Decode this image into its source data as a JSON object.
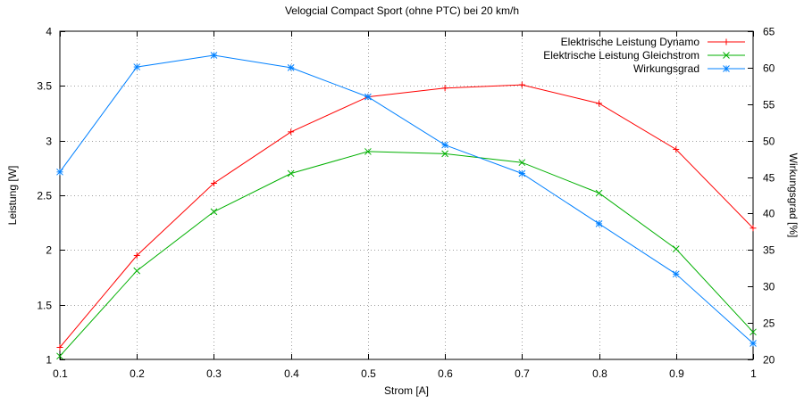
{
  "chart_data": {
    "type": "line",
    "title": "Velogcial Compact Sport (ohne PTC) bei 20 km/h",
    "xlabel": "Strom [A]",
    "ylabel": "Leistung [W]",
    "y2label": "Wirkungsgrad [%]",
    "xlim": [
      0.1,
      1
    ],
    "ylim": [
      1,
      4
    ],
    "y2lim": [
      20,
      65
    ],
    "grid": true,
    "legend_position": "top-right",
    "x": [
      0.1,
      0.2,
      0.3,
      0.4,
      0.5,
      0.6,
      0.7,
      0.8,
      0.9,
      1.0
    ],
    "x_ticks": [
      "0.1",
      "0.2",
      "0.3",
      "0.4",
      "0.5",
      "0.6",
      "0.7",
      "0.8",
      "0.9",
      "1"
    ],
    "y_ticks": [
      "1",
      "1.5",
      "2",
      "2.5",
      "3",
      "3.5",
      "4"
    ],
    "y_tick_values": [
      1,
      1.5,
      2,
      2.5,
      3,
      3.5,
      4
    ],
    "y2_ticks": [
      "20",
      "25",
      "30",
      "35",
      "40",
      "45",
      "50",
      "55",
      "60",
      "65"
    ],
    "y2_tick_values": [
      20,
      25,
      30,
      35,
      40,
      45,
      50,
      55,
      60,
      65
    ],
    "series": [
      {
        "name": "Elektrische Leistung Dynamo",
        "axis": "left",
        "color": "#ff0000",
        "marker": "plus",
        "values": [
          1.11,
          1.95,
          2.61,
          3.08,
          3.4,
          3.48,
          3.51,
          3.34,
          2.92,
          2.2
        ]
      },
      {
        "name": "Elektrische Leistung Gleichstrom",
        "axis": "left",
        "color": "#00b000",
        "marker": "cross",
        "values": [
          1.03,
          1.81,
          2.35,
          2.7,
          2.9,
          2.88,
          2.8,
          2.52,
          2.01,
          1.25
        ]
      },
      {
        "name": "Wirkungsgrad",
        "axis": "right",
        "color": "#0080ff",
        "marker": "star",
        "values": [
          45.7,
          60.1,
          61.7,
          60.0,
          56.0,
          49.4,
          45.5,
          38.6,
          31.7,
          22.2
        ]
      }
    ]
  }
}
